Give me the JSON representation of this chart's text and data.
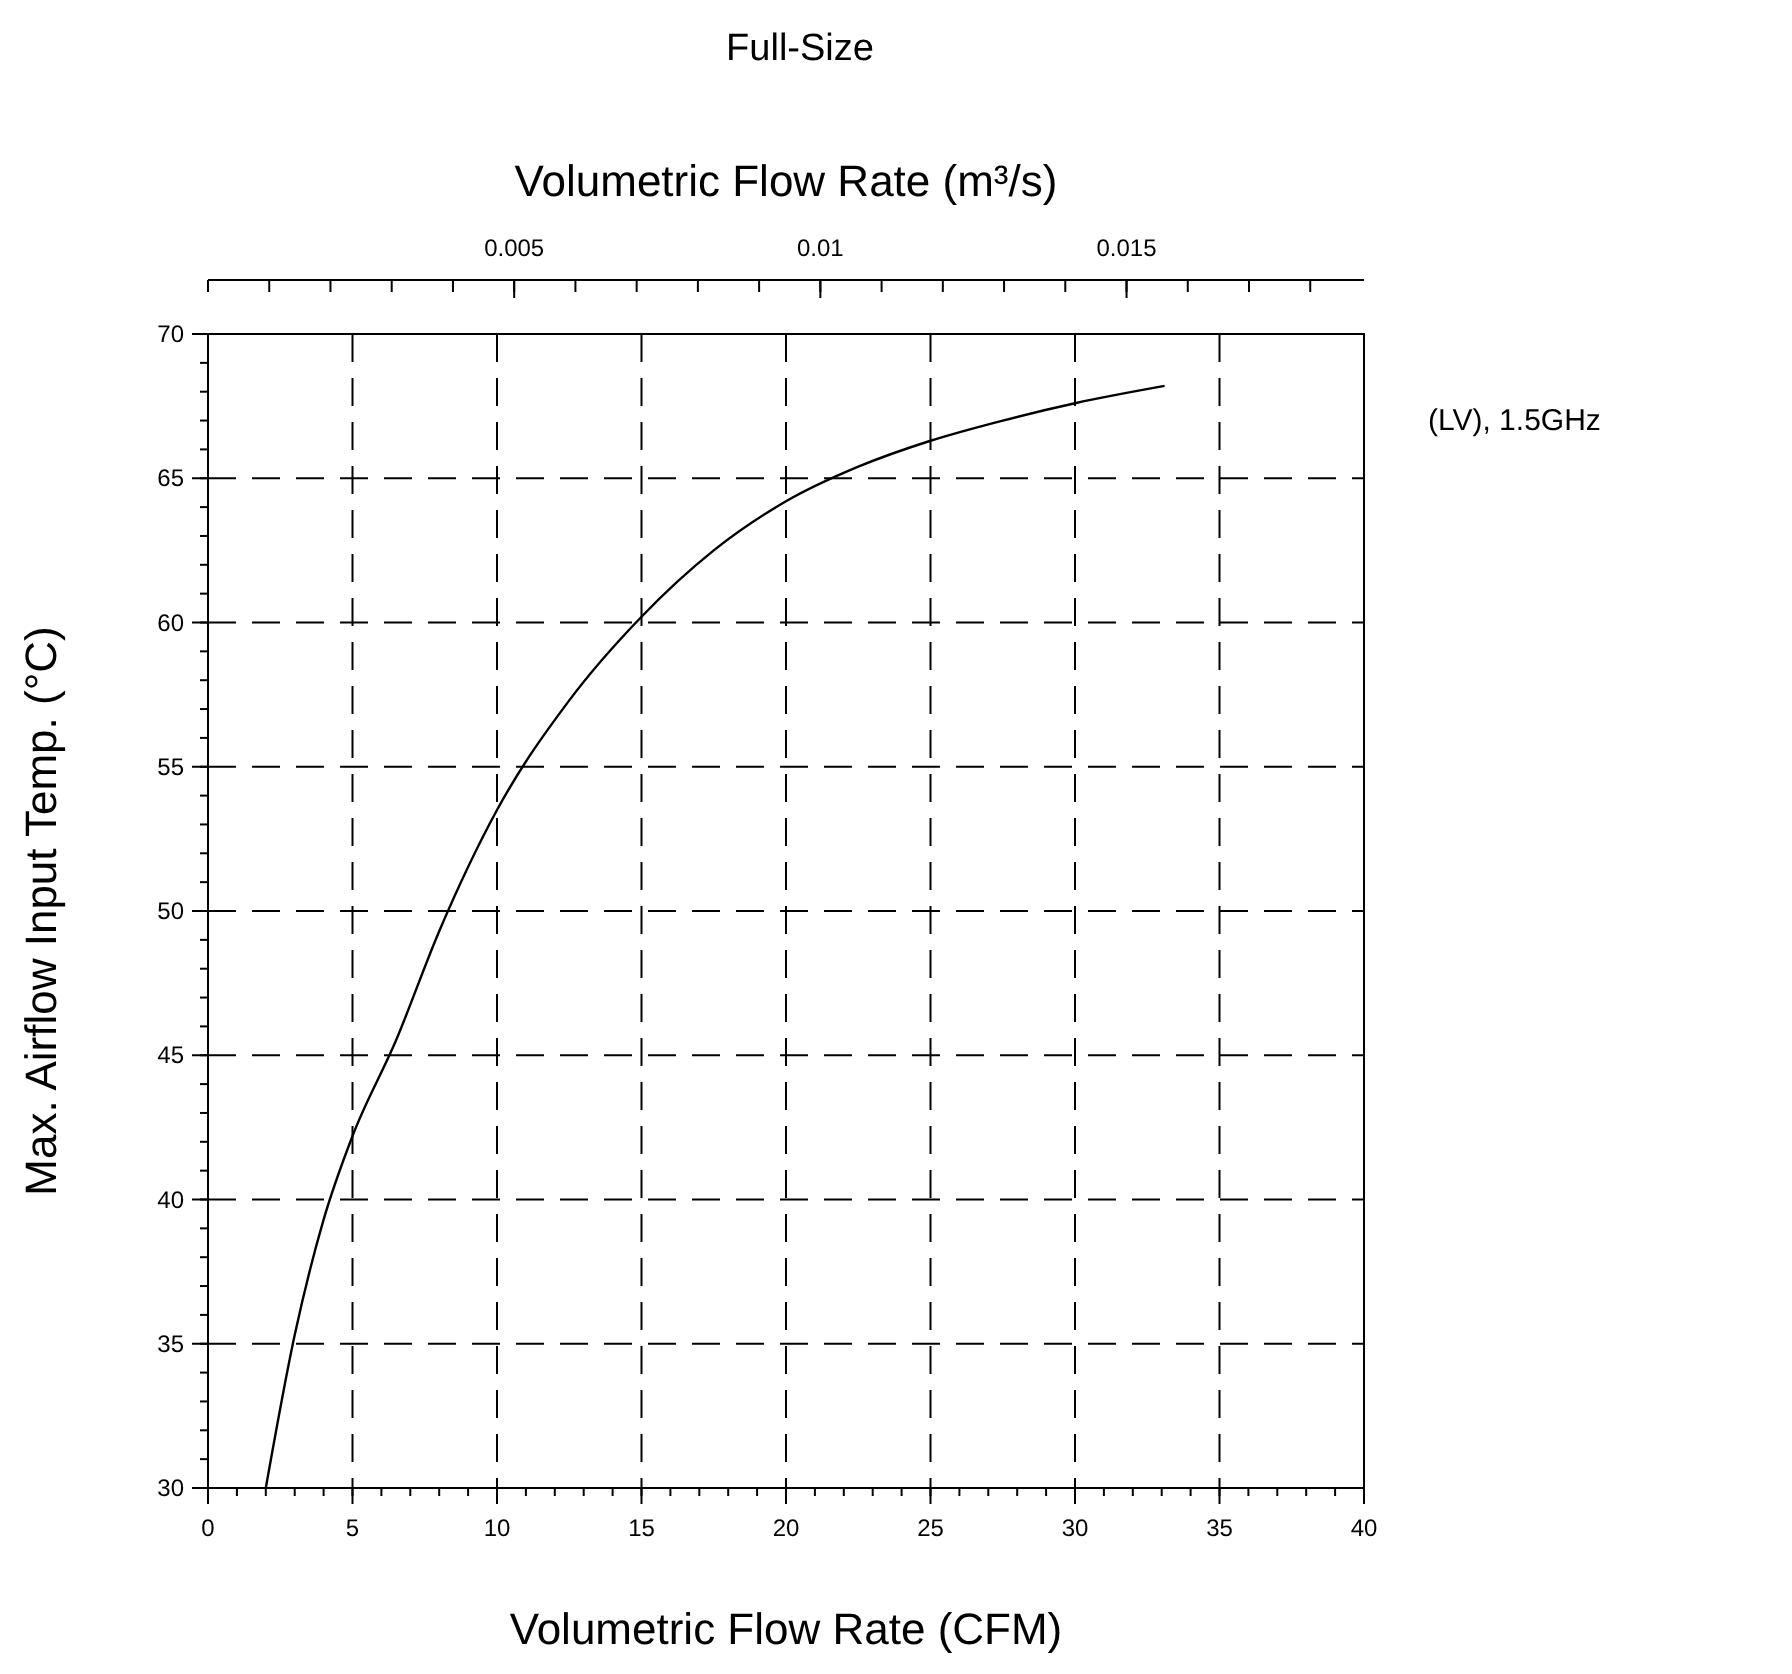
{
  "chart_data": {
    "type": "line",
    "title": "Full-Size",
    "xlabel": "Volumetric Flow Rate (CFM)",
    "ylabel": "Max. Airflow Input Temp. (°C)",
    "x2label": "Volumetric Flow Rate (m³/s)",
    "xlim": [
      0,
      40
    ],
    "xticks": [
      0,
      5,
      10,
      15,
      20,
      25,
      30,
      35,
      40
    ],
    "ylim": [
      30,
      70
    ],
    "yticks": [
      30,
      35,
      40,
      45,
      50,
      55,
      60,
      65,
      70
    ],
    "x2lim": [
      0,
      0.018878
    ],
    "x2ticks": [
      0.005,
      0.01,
      0.015
    ],
    "grid": true,
    "legend": "right",
    "marker": "none",
    "series": [
      {
        "name": "(LV), 1.5GHz",
        "color": "#000000",
        "x": [
          2.0,
          3.0,
          4.0,
          5.0,
          6.5,
          8.0,
          10.0,
          12.5,
          15.0,
          17.5,
          20.0,
          22.5,
          25.0,
          27.5,
          30.0,
          33.1
        ],
        "values": [
          30,
          35.3,
          39.3,
          42.2,
          45.5,
          49.3,
          53.5,
          57.3,
          60.2,
          62.5,
          64.2,
          65.4,
          66.3,
          67.0,
          67.6,
          68.2
        ]
      }
    ]
  }
}
